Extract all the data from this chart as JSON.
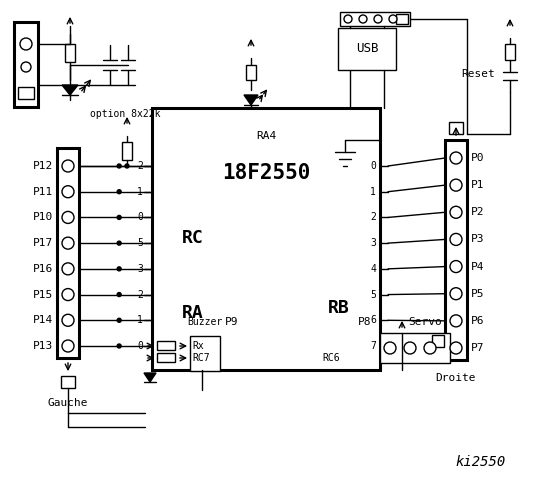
{
  "title": "ki2550",
  "bg_color": "#ffffff",
  "line_color": "#000000",
  "chip_label": "18F2550",
  "chip_sub": "RA4",
  "rc_label": "RC",
  "ra_label": "RA",
  "rb_label": "RB",
  "rc_pins": [
    "2",
    "1",
    "0"
  ],
  "ra_pins": [
    "5",
    "3",
    "2",
    "1",
    "0"
  ],
  "rb_pins": [
    "0",
    "1",
    "2",
    "3",
    "4",
    "5",
    "6",
    "7"
  ],
  "left_pins": [
    "P12",
    "P11",
    "P10",
    "P17",
    "P16",
    "P15",
    "P14",
    "P13"
  ],
  "right_pins": [
    "P0",
    "P1",
    "P2",
    "P3",
    "P4",
    "P5",
    "P6",
    "P7"
  ],
  "bottom_labels": [
    "Buzzer",
    "P9",
    "P8",
    "Servo"
  ],
  "left_label": "Gauche",
  "right_label": "Droite",
  "option_label": "option 8x22k",
  "reset_label": "Reset",
  "usb_label": "USB",
  "rx_label": "Rx",
  "rc7_label": "RC7",
  "rc6_label": "RC6",
  "font_size": 8
}
